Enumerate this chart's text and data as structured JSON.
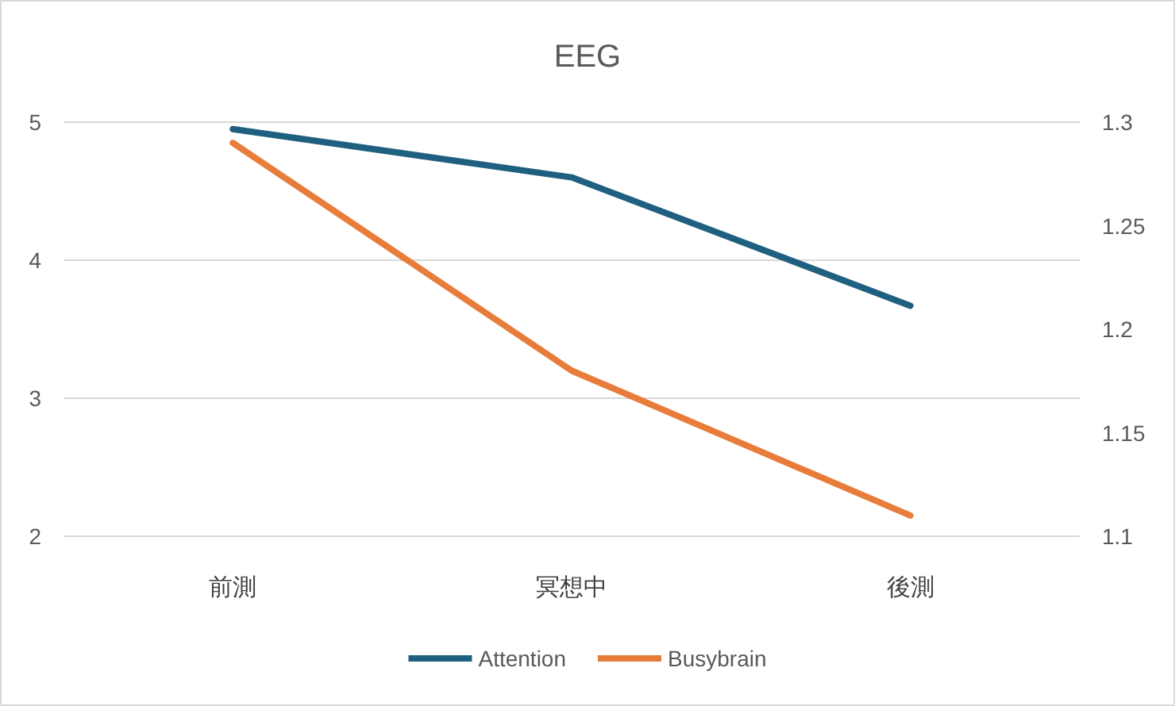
{
  "chart_data": {
    "type": "line",
    "title": "EEG",
    "categories": [
      "前測",
      "冥想中",
      "後測"
    ],
    "series": [
      {
        "name": "Attention",
        "color": "#1f5f7f",
        "values": [
          4.95,
          4.6,
          3.67
        ]
      },
      {
        "name": "Busybrain",
        "color": "#e87c3a",
        "values": [
          1.29,
          1.18,
          1.11
        ],
        "axis": "y2"
      }
    ],
    "ylim": [
      2,
      5
    ],
    "yticks": [
      2,
      3,
      4,
      5
    ],
    "y2lim": [
      1.1,
      1.3
    ],
    "y2ticks": [
      1.1,
      1.15,
      1.2,
      1.25,
      1.3
    ],
    "grid": "y",
    "legend": "bottom"
  }
}
